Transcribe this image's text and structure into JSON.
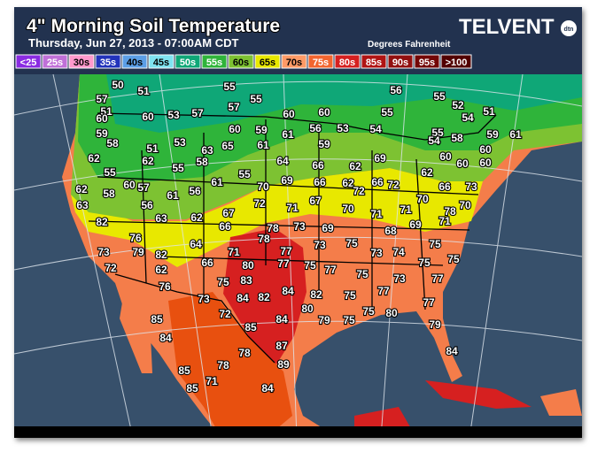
{
  "header": {
    "title": "4\" Morning Soil Temperature",
    "subtitle": "Thursday, Jun 27, 2013 - 07:00AM CDT",
    "units": "Degrees Fahrenheit",
    "brand": "TELVENT",
    "brand_sub": "dtn"
  },
  "legend": [
    {
      "label": "<25",
      "color": "#8a2be2"
    },
    {
      "label": "25s",
      "color": "#c070d8"
    },
    {
      "label": "30s",
      "color": "#ff99cc"
    },
    {
      "label": "35s",
      "color": "#2233bb"
    },
    {
      "label": "40s",
      "color": "#5b9ee6"
    },
    {
      "label": "45s",
      "color": "#7fe3f0"
    },
    {
      "label": "50s",
      "color": "#0fa777"
    },
    {
      "label": "55s",
      "color": "#2fb43a"
    },
    {
      "label": "60s",
      "color": "#7dc232"
    },
    {
      "label": "65s",
      "color": "#e8e800"
    },
    {
      "label": "70s",
      "color": "#ff9a66"
    },
    {
      "label": "75s",
      "color": "#f2652f"
    },
    {
      "label": "80s",
      "color": "#d62020"
    },
    {
      "label": "85s",
      "color": "#b01414"
    },
    {
      "label": "90s",
      "color": "#921010"
    },
    {
      "label": "95s",
      "color": "#730606"
    },
    {
      "label": ">100",
      "color": "#520000"
    }
  ],
  "stations": [
    50,
    51,
    55,
    56,
    55,
    52,
    57,
    55,
    57,
    51,
    60,
    53,
    57,
    60,
    60,
    55,
    54,
    51,
    60,
    59,
    60,
    59,
    61,
    56,
    53,
    54,
    55,
    54,
    58,
    59,
    61,
    58,
    53,
    63,
    65,
    61,
    59,
    51,
    62,
    62,
    55,
    58,
    64,
    66,
    62,
    69,
    60,
    60,
    60,
    60,
    55,
    55,
    69,
    60,
    57,
    61,
    66,
    62,
    66,
    72,
    62,
    66,
    73,
    62,
    58,
    61,
    56,
    70,
    67,
    72,
    70,
    70,
    70,
    63,
    56,
    72,
    71,
    71,
    71,
    78,
    82,
    63,
    62,
    67,
    69,
    68,
    69,
    71,
    66,
    78,
    73,
    76,
    78,
    73,
    75,
    75,
    73,
    79,
    82,
    64,
    71,
    77,
    73,
    74,
    75,
    75,
    72,
    62,
    66,
    80,
    77,
    75,
    77,
    75,
    73,
    77,
    76,
    75,
    83,
    84,
    82,
    75,
    77,
    73,
    84,
    82,
    80,
    79,
    75,
    75,
    80,
    77,
    85,
    72,
    84,
    85,
    79,
    84,
    87,
    78,
    84,
    78,
    89,
    85,
    71,
    85,
    84
  ]
}
